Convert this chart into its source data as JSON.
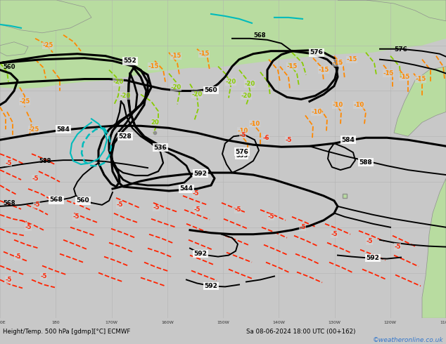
{
  "title_bottom": "Height/Temp. 500 hPa [gdmp][°C] ECMWF",
  "title_right": "Sa 08-06-2024 18:00 UTC (00+162)",
  "watermark": "©weatheronline.co.uk",
  "bg_color": "#c8c8c8",
  "land_color_upper": "#b8dca0",
  "land_color_lower": "#c8e8a8",
  "ocean_color": "#d4d4d4",
  "grid_color": "#b0b0b0",
  "z500_color": "#000000",
  "teal_color": "#00bbbb",
  "orange_color": "#ff8800",
  "ygreen_color": "#88cc00",
  "red_color": "#ff2200",
  "text_color": "#000000",
  "watermark_color": "#3377cc",
  "bottom_bg": "#c0c0c0"
}
